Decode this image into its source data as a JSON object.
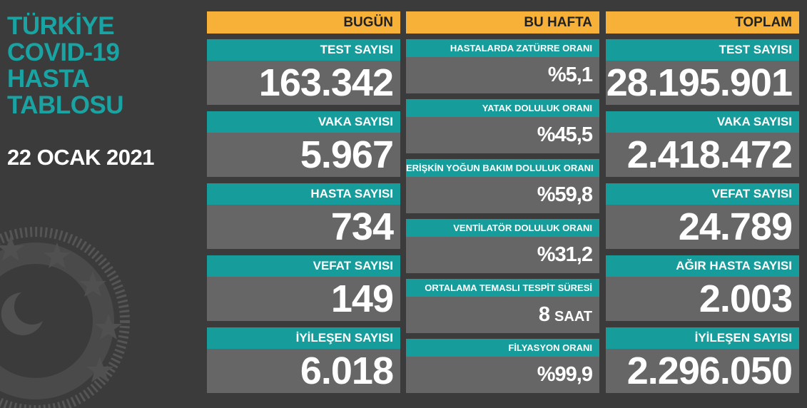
{
  "header": {
    "title": [
      "TÜRKİYE",
      "COVID-19",
      "HASTA",
      "TABLOSU"
    ],
    "date": "22 OCAK 2021"
  },
  "columns": [
    {
      "title": "BUGÜN",
      "items": [
        {
          "label": "TEST SAYISI",
          "value": "163.342"
        },
        {
          "label": "VAKA SAYISI",
          "value": "5.967"
        },
        {
          "label": "HASTA SAYISI",
          "value": "734"
        },
        {
          "label": "VEFAT SAYISI",
          "value": "149"
        },
        {
          "label": "İYİLEŞEN SAYISI",
          "value": "6.018"
        }
      ]
    },
    {
      "title": "BU HAFTA",
      "items": [
        {
          "label": "HASTALARDA ZATÜRRE ORANI",
          "value": "%5,1"
        },
        {
          "label": "YATAK DOLULUK ORANI",
          "value": "%45,5"
        },
        {
          "label": "ERİŞKİN YOĞUN BAKIM DOLULUK ORANI",
          "value": "%59,8"
        },
        {
          "label": "VENTİLATÖR DOLULUK ORANI",
          "value": "%31,2"
        },
        {
          "label": "ORTALAMA TEMASLI TESPİT SÜRESİ",
          "value": "8",
          "unit": "SAAT"
        },
        {
          "label": "FİLYASYON ORANI",
          "value": "%99,9"
        }
      ]
    },
    {
      "title": "TOPLAM",
      "items": [
        {
          "label": "TEST SAYISI",
          "value": "28.195.901"
        },
        {
          "label": "VAKA SAYISI",
          "value": "2.418.472"
        },
        {
          "label": "VEFAT SAYISI",
          "value": "24.789"
        },
        {
          "label": "AĞIR HASTA SAYISI",
          "value": "2.003"
        },
        {
          "label": "İYİLEŞEN SAYISI",
          "value": "2.296.050"
        }
      ]
    }
  ]
}
